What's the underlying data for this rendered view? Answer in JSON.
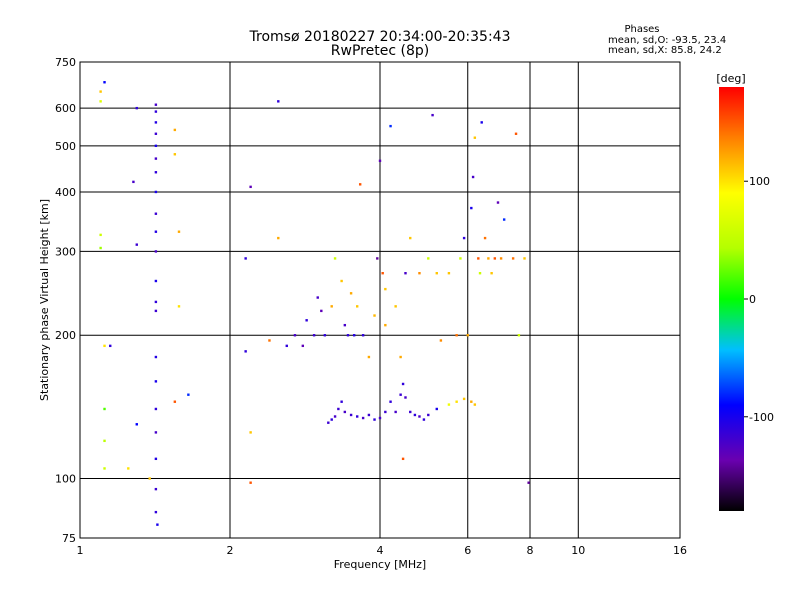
{
  "chart_data": {
    "type": "scatter",
    "title": "Tromsø 20180227 20:34:00-20:35:43",
    "subtitle": "RwPretec (8p)",
    "phases": {
      "heading": "Phases",
      "line_o": "mean, sd,O:  -93.5, 23.4",
      "line_x": "mean, sd,X:  85.8, 24.2"
    },
    "xlabel": "Frequency [MHz]",
    "ylabel": "Stationary phase Virtual Height [km]",
    "x_scale": "log",
    "y_scale": "log",
    "xlim": [
      1,
      16
    ],
    "ylim": [
      75,
      750
    ],
    "x_ticks": [
      1,
      2,
      4,
      6,
      8,
      10,
      16
    ],
    "y_ticks": [
      75,
      100,
      200,
      300,
      400,
      500,
      600,
      750
    ],
    "grid": true,
    "colorbar": {
      "label": "[deg]",
      "range": [
        -180,
        180
      ],
      "ticks": [
        100,
        0,
        -100
      ]
    },
    "points": [
      {
        "x": 1.42,
        "y": 610,
        "phase": -120
      },
      {
        "x": 1.42,
        "y": 590,
        "phase": -110
      },
      {
        "x": 1.42,
        "y": 560,
        "phase": -105
      },
      {
        "x": 1.42,
        "y": 530,
        "phase": -115
      },
      {
        "x": 1.42,
        "y": 500,
        "phase": -100
      },
      {
        "x": 1.42,
        "y": 470,
        "phase": -120
      },
      {
        "x": 1.42,
        "y": 440,
        "phase": -110
      },
      {
        "x": 1.42,
        "y": 400,
        "phase": -100
      },
      {
        "x": 1.42,
        "y": 360,
        "phase": -115
      },
      {
        "x": 1.42,
        "y": 330,
        "phase": -105
      },
      {
        "x": 1.42,
        "y": 300,
        "phase": -120
      },
      {
        "x": 1.42,
        "y": 260,
        "phase": -100
      },
      {
        "x": 1.42,
        "y": 235,
        "phase": -110
      },
      {
        "x": 1.42,
        "y": 225,
        "phase": -115
      },
      {
        "x": 1.42,
        "y": 180,
        "phase": -105
      },
      {
        "x": 1.42,
        "y": 160,
        "phase": -100
      },
      {
        "x": 1.42,
        "y": 140,
        "phase": -110
      },
      {
        "x": 1.42,
        "y": 125,
        "phase": -120
      },
      {
        "x": 1.42,
        "y": 110,
        "phase": -105
      },
      {
        "x": 1.42,
        "y": 95,
        "phase": -115
      },
      {
        "x": 1.42,
        "y": 85,
        "phase": -110
      },
      {
        "x": 1.43,
        "y": 80,
        "phase": -100
      },
      {
        "x": 1.12,
        "y": 680,
        "phase": -90
      },
      {
        "x": 1.3,
        "y": 600,
        "phase": -110
      },
      {
        "x": 1.28,
        "y": 420,
        "phase": -120
      },
      {
        "x": 1.3,
        "y": 310,
        "phase": -115
      },
      {
        "x": 1.1,
        "y": 325,
        "phase": 60
      },
      {
        "x": 1.1,
        "y": 305,
        "phase": 40
      },
      {
        "x": 1.1,
        "y": 650,
        "phase": 110
      },
      {
        "x": 1.1,
        "y": 620,
        "phase": 70
      },
      {
        "x": 1.12,
        "y": 190,
        "phase": 100
      },
      {
        "x": 1.15,
        "y": 190,
        "phase": -110
      },
      {
        "x": 1.12,
        "y": 140,
        "phase": 20
      },
      {
        "x": 1.12,
        "y": 120,
        "phase": 50
      },
      {
        "x": 1.12,
        "y": 105,
        "phase": 60
      },
      {
        "x": 1.25,
        "y": 105,
        "phase": 100
      },
      {
        "x": 1.3,
        "y": 130,
        "phase": -90
      },
      {
        "x": 1.38,
        "y": 100,
        "phase": 110
      },
      {
        "x": 1.55,
        "y": 540,
        "phase": 120
      },
      {
        "x": 1.58,
        "y": 330,
        "phase": 120
      },
      {
        "x": 1.55,
        "y": 480,
        "phase": 110
      },
      {
        "x": 1.58,
        "y": 230,
        "phase": 100
      },
      {
        "x": 1.55,
        "y": 145,
        "phase": 150
      },
      {
        "x": 1.65,
        "y": 150,
        "phase": -80
      },
      {
        "x": 2.15,
        "y": 290,
        "phase": -110
      },
      {
        "x": 2.15,
        "y": 185,
        "phase": -110
      },
      {
        "x": 2.2,
        "y": 410,
        "phase": -130
      },
      {
        "x": 2.2,
        "y": 125,
        "phase": 110
      },
      {
        "x": 2.2,
        "y": 98,
        "phase": 150
      },
      {
        "x": 2.5,
        "y": 620,
        "phase": -110
      },
      {
        "x": 2.5,
        "y": 320,
        "phase": 120
      },
      {
        "x": 2.4,
        "y": 195,
        "phase": 140
      },
      {
        "x": 2.6,
        "y": 190,
        "phase": -110
      },
      {
        "x": 2.7,
        "y": 200,
        "phase": -120
      },
      {
        "x": 2.8,
        "y": 190,
        "phase": -130
      },
      {
        "x": 2.85,
        "y": 215,
        "phase": -110
      },
      {
        "x": 2.95,
        "y": 200,
        "phase": -115
      },
      {
        "x": 3.0,
        "y": 240,
        "phase": -120
      },
      {
        "x": 3.05,
        "y": 225,
        "phase": -130
      },
      {
        "x": 3.1,
        "y": 200,
        "phase": -110
      },
      {
        "x": 3.2,
        "y": 230,
        "phase": 120
      },
      {
        "x": 3.25,
        "y": 290,
        "phase": 60
      },
      {
        "x": 3.35,
        "y": 260,
        "phase": 110
      },
      {
        "x": 3.4,
        "y": 210,
        "phase": -120
      },
      {
        "x": 3.45,
        "y": 200,
        "phase": -110
      },
      {
        "x": 3.5,
        "y": 245,
        "phase": 120
      },
      {
        "x": 3.55,
        "y": 200,
        "phase": -105
      },
      {
        "x": 3.6,
        "y": 230,
        "phase": 110
      },
      {
        "x": 3.65,
        "y": 415,
        "phase": 150
      },
      {
        "x": 3.7,
        "y": 200,
        "phase": -110
      },
      {
        "x": 3.8,
        "y": 180,
        "phase": 120
      },
      {
        "x": 3.9,
        "y": 220,
        "phase": 115
      },
      {
        "x": 3.95,
        "y": 290,
        "phase": -140
      },
      {
        "x": 4.0,
        "y": 465,
        "phase": -130
      },
      {
        "x": 4.05,
        "y": 270,
        "phase": 150
      },
      {
        "x": 4.1,
        "y": 250,
        "phase": 110
      },
      {
        "x": 4.1,
        "y": 210,
        "phase": 120
      },
      {
        "x": 4.2,
        "y": 550,
        "phase": -80
      },
      {
        "x": 4.3,
        "y": 230,
        "phase": 110
      },
      {
        "x": 4.4,
        "y": 180,
        "phase": 120
      },
      {
        "x": 4.45,
        "y": 110,
        "phase": 150
      },
      {
        "x": 4.5,
        "y": 270,
        "phase": -120
      },
      {
        "x": 4.6,
        "y": 320,
        "phase": 110
      },
      {
        "x": 4.8,
        "y": 270,
        "phase": 130
      },
      {
        "x": 5.0,
        "y": 290,
        "phase": 60
      },
      {
        "x": 5.1,
        "y": 580,
        "phase": -120
      },
      {
        "x": 5.2,
        "y": 270,
        "phase": 110
      },
      {
        "x": 5.3,
        "y": 195,
        "phase": 130
      },
      {
        "x": 5.5,
        "y": 270,
        "phase": 110
      },
      {
        "x": 5.7,
        "y": 200,
        "phase": 140
      },
      {
        "x": 5.8,
        "y": 290,
        "phase": 60
      },
      {
        "x": 5.9,
        "y": 320,
        "phase": -110
      },
      {
        "x": 6.0,
        "y": 200,
        "phase": 120
      },
      {
        "x": 6.1,
        "y": 370,
        "phase": -100
      },
      {
        "x": 6.15,
        "y": 430,
        "phase": -120
      },
      {
        "x": 6.2,
        "y": 520,
        "phase": 110
      },
      {
        "x": 6.3,
        "y": 290,
        "phase": 150
      },
      {
        "x": 6.35,
        "y": 270,
        "phase": 60
      },
      {
        "x": 6.4,
        "y": 560,
        "phase": -100
      },
      {
        "x": 6.5,
        "y": 320,
        "phase": 140
      },
      {
        "x": 6.6,
        "y": 290,
        "phase": 120
      },
      {
        "x": 6.7,
        "y": 270,
        "phase": 110
      },
      {
        "x": 6.8,
        "y": 290,
        "phase": 150
      },
      {
        "x": 6.9,
        "y": 380,
        "phase": -130
      },
      {
        "x": 7.0,
        "y": 290,
        "phase": 130
      },
      {
        "x": 7.1,
        "y": 350,
        "phase": -80
      },
      {
        "x": 7.4,
        "y": 290,
        "phase": 140
      },
      {
        "x": 7.5,
        "y": 530,
        "phase": 150
      },
      {
        "x": 7.6,
        "y": 200,
        "phase": 60
      },
      {
        "x": 7.8,
        "y": 290,
        "phase": 110
      },
      {
        "x": 7.95,
        "y": 98,
        "phase": -140
      },
      {
        "x": 3.15,
        "y": 131,
        "phase": -115
      },
      {
        "x": 3.2,
        "y": 133,
        "phase": -110
      },
      {
        "x": 3.25,
        "y": 135,
        "phase": -120
      },
      {
        "x": 3.3,
        "y": 140,
        "phase": -115
      },
      {
        "x": 3.35,
        "y": 145,
        "phase": -110
      },
      {
        "x": 3.4,
        "y": 138,
        "phase": -120
      },
      {
        "x": 3.5,
        "y": 136,
        "phase": -115
      },
      {
        "x": 3.6,
        "y": 135,
        "phase": -110
      },
      {
        "x": 3.7,
        "y": 134,
        "phase": -120
      },
      {
        "x": 3.8,
        "y": 136,
        "phase": -115
      },
      {
        "x": 3.9,
        "y": 133,
        "phase": -110
      },
      {
        "x": 4.0,
        "y": 134,
        "phase": -120
      },
      {
        "x": 4.1,
        "y": 138,
        "phase": -115
      },
      {
        "x": 4.2,
        "y": 145,
        "phase": -110
      },
      {
        "x": 4.3,
        "y": 138,
        "phase": -120
      },
      {
        "x": 4.4,
        "y": 150,
        "phase": -115
      },
      {
        "x": 4.45,
        "y": 158,
        "phase": -110
      },
      {
        "x": 4.5,
        "y": 148,
        "phase": -120
      },
      {
        "x": 4.6,
        "y": 138,
        "phase": -115
      },
      {
        "x": 4.7,
        "y": 136,
        "phase": -110
      },
      {
        "x": 4.8,
        "y": 135,
        "phase": -120
      },
      {
        "x": 4.9,
        "y": 133,
        "phase": -110
      },
      {
        "x": 5.0,
        "y": 136,
        "phase": -115
      },
      {
        "x": 5.2,
        "y": 140,
        "phase": -100
      },
      {
        "x": 5.5,
        "y": 143,
        "phase": 80
      },
      {
        "x": 5.7,
        "y": 145,
        "phase": 100
      },
      {
        "x": 5.9,
        "y": 147,
        "phase": 110
      },
      {
        "x": 6.1,
        "y": 145,
        "phase": 120
      },
      {
        "x": 6.2,
        "y": 143,
        "phase": 110
      }
    ]
  }
}
